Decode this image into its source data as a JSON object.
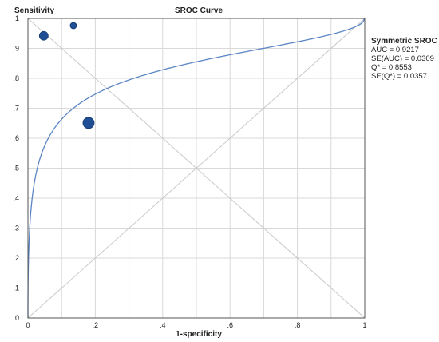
{
  "chart_data": {
    "type": "scatter",
    "title": "SROC Curve",
    "xlabel": "1-specificity",
    "ylabel": "Sensitivity",
    "xlim": [
      0,
      1
    ],
    "ylim": [
      0,
      1
    ],
    "x_ticks": [
      "0",
      ".2",
      ".4",
      ".6",
      ".8",
      "1"
    ],
    "y_ticks": [
      "0",
      ".1",
      ".2",
      ".3",
      ".4",
      ".5",
      ".6",
      ".7",
      ".8",
      ".9",
      "1"
    ],
    "grid": true,
    "points": [
      {
        "x": 0.047,
        "y": 0.942,
        "size": "medium"
      },
      {
        "x": 0.135,
        "y": 0.976,
        "size": "small"
      },
      {
        "x": 0.18,
        "y": 0.651,
        "size": "large"
      }
    ],
    "curve": {
      "type": "symmetric-sroc",
      "Q_star": 0.8553
    },
    "reference_lines": [
      "diagonal (0,0)-(1,1)",
      "anti-diagonal (0,1)-(1,0)"
    ],
    "colors": {
      "curve": "#5b86c5",
      "points": "#1f4e94",
      "grid": "#d9d9d9",
      "reference": "#c8c8c8"
    },
    "legend": {
      "placement": "right",
      "title": "Symmetric SROC",
      "lines": [
        "AUC = 0.9217",
        "SE(AUC) = 0.0309",
        "Q* = 0.8553",
        "SE(Q*) = 0.0357"
      ]
    }
  }
}
